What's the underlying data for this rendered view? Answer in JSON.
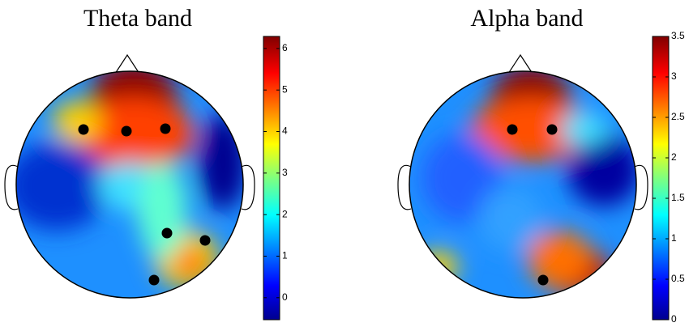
{
  "chart_data": [
    {
      "type": "topomap",
      "title": "Theta band",
      "ylim": [
        -0.53,
        6.29
      ],
      "yticks": [
        0,
        1,
        2,
        3,
        4,
        5,
        6
      ]
    },
    {
      "type": "topomap",
      "title": "Alpha band",
      "ylim": [
        0,
        3.5
      ],
      "yticks": [
        0,
        0.5,
        1,
        1.5,
        2,
        2.5,
        3,
        3.5
      ]
    }
  ]
}
